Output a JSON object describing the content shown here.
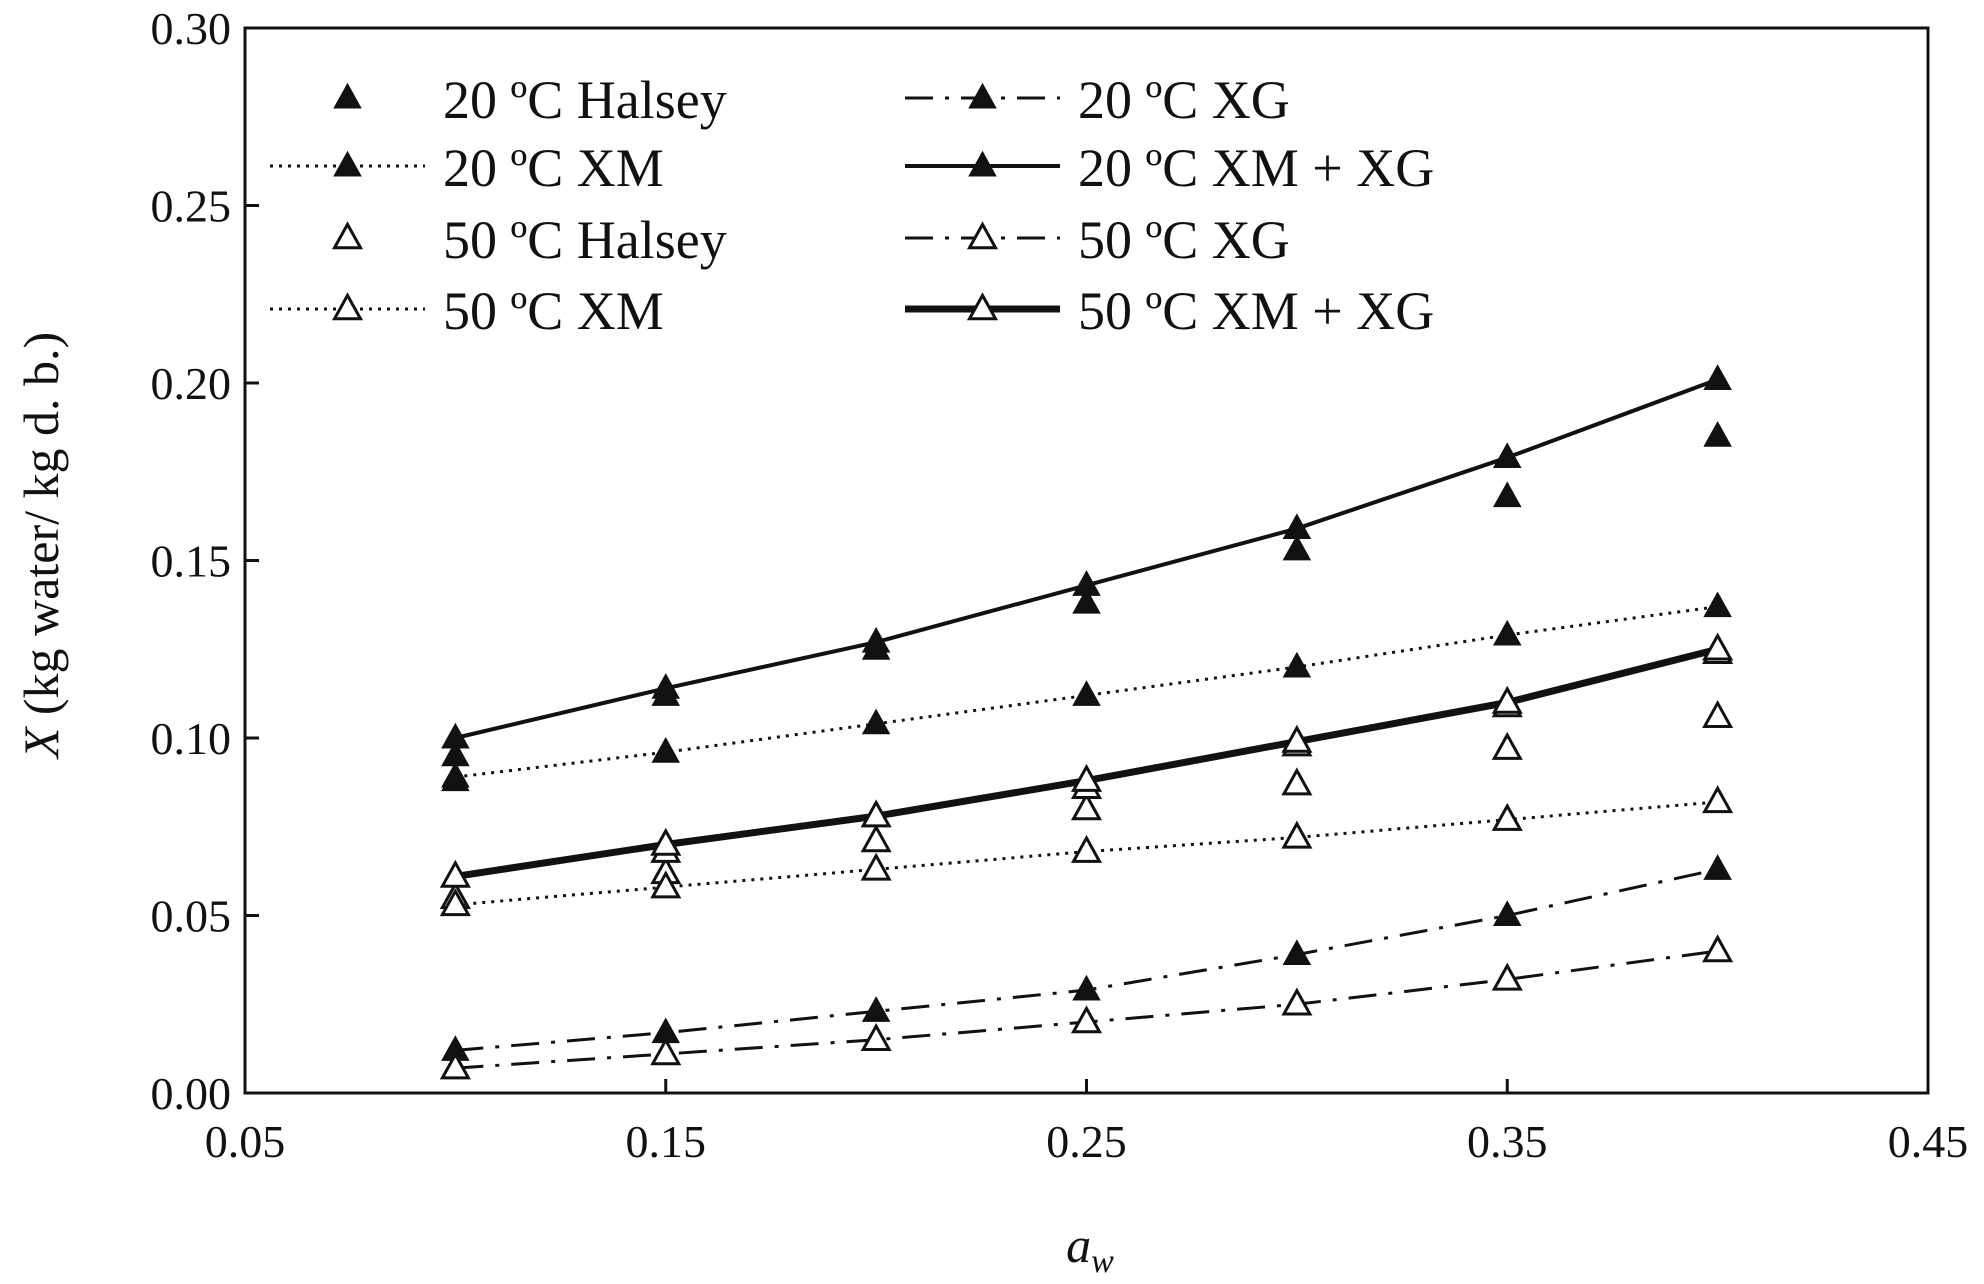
{
  "chart_data": {
    "type": "line",
    "title": "",
    "xlabel_main": "a",
    "xlabel_sub": "w",
    "ylabel_italic": "X",
    "ylabel_rest": " (kg water/ kg d. b.)",
    "xlim": [
      0.05,
      0.45
    ],
    "ylim": [
      0.0,
      0.3
    ],
    "x_ticks": [
      "0.05",
      "0.15",
      "0.25",
      "0.35",
      "0.45"
    ],
    "y_ticks": [
      "0.00",
      "0.05",
      "0.10",
      "0.15",
      "0.20",
      "0.25",
      "0.30"
    ],
    "x": [
      0.1,
      0.15,
      0.2,
      0.25,
      0.3,
      0.35,
      0.4
    ],
    "grid": false,
    "legend_position": "top-left",
    "series": [
      {
        "name": "20 ºC Halsey",
        "style": "markers-only",
        "marker": "filled-triangle",
        "values": [
          0.095,
          0.112,
          0.125,
          0.138,
          0.153,
          0.168,
          0.185
        ],
        "extra_points": [
          [
            0.1,
            0.088
          ]
        ]
      },
      {
        "name": "20 ºC XG",
        "style": "dash-dot",
        "marker": "filled-triangle",
        "values": [
          0.012,
          0.017,
          0.023,
          0.029,
          0.039,
          0.05,
          0.063
        ]
      },
      {
        "name": "20 ºC XM",
        "style": "dotted",
        "marker": "filled-triangle",
        "values": [
          0.089,
          0.096,
          0.104,
          0.112,
          0.12,
          0.129,
          0.137
        ]
      },
      {
        "name": "20 ºC XM + XG",
        "style": "solid",
        "marker": "filled-triangle",
        "values": [
          0.1,
          0.114,
          0.127,
          0.143,
          0.159,
          0.179,
          0.201
        ]
      },
      {
        "name": "50 ºC Halsey",
        "style": "markers-only",
        "marker": "open-triangle",
        "values": [
          0.055,
          0.062,
          0.071,
          0.08,
          0.087,
          0.097,
          0.106
        ],
        "extra_points": [
          [
            0.15,
            0.068
          ],
          [
            0.25,
            0.086
          ],
          [
            0.3,
            0.098
          ],
          [
            0.35,
            0.109
          ],
          [
            0.4,
            0.124
          ]
        ]
      },
      {
        "name": "50 ºC XG",
        "style": "dash-dot",
        "marker": "open-triangle",
        "values": [
          0.007,
          0.011,
          0.015,
          0.02,
          0.025,
          0.032,
          0.04
        ]
      },
      {
        "name": "50 ºC XM",
        "style": "dotted",
        "marker": "open-triangle",
        "values": [
          0.053,
          0.058,
          0.063,
          0.068,
          0.072,
          0.077,
          0.082
        ]
      },
      {
        "name": "50 ºC XM + XG",
        "style": "thick-solid",
        "marker": "open-triangle",
        "values": [
          0.061,
          0.07,
          0.078,
          0.088,
          0.099,
          0.11,
          0.125
        ]
      }
    ]
  },
  "legend": {
    "items": [
      {
        "name": "20 ºC Halsey",
        "series_index": 0
      },
      {
        "name": "20 ºC XG",
        "series_index": 1
      },
      {
        "name": "20 ºC XM",
        "series_index": 2
      },
      {
        "name": "20 ºC XM + XG",
        "series_index": 3
      },
      {
        "name": "50 ºC Halsey",
        "series_index": 4
      },
      {
        "name": "50 ºC XG",
        "series_index": 5
      },
      {
        "name": "50 ºC XM",
        "series_index": 6
      },
      {
        "name": "50 ºC XM + XG",
        "series_index": 7
      }
    ]
  }
}
